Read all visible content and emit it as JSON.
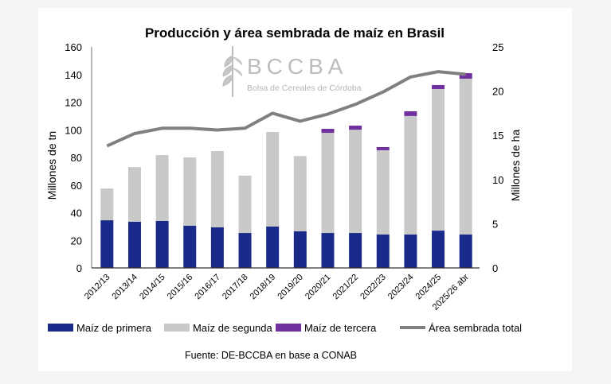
{
  "chart_data": {
    "type": "bar",
    "title": "Producción y área sembrada de maíz en Brasil",
    "ylabel": "Millones de tn",
    "y2label": "Millones de ha",
    "ylim": [
      0,
      160
    ],
    "yticks": [
      0,
      20,
      40,
      60,
      80,
      100,
      120,
      140,
      160
    ],
    "y2lim": [
      0,
      25
    ],
    "y2ticks": [
      0,
      5,
      10,
      15,
      20,
      25
    ],
    "stacked": true,
    "grid": false,
    "legend": "bottom",
    "categories": [
      "2012/13",
      "2013/14",
      "2014/15",
      "2015/16",
      "2016/17",
      "2017/18",
      "2018/19",
      "2019/20",
      "2020/21",
      "2021/22",
      "2022/23",
      "2023/24",
      "2024/25",
      "2025/26 abr"
    ],
    "series": [
      {
        "name": "Maíz de primera",
        "type": "bar",
        "color": "#1a2a8a",
        "values": [
          34.5,
          33.4,
          34,
          30.5,
          29.4,
          25.3,
          30,
          26.5,
          25.3,
          25.3,
          24.2,
          24.2,
          27,
          24.2
        ]
      },
      {
        "name": "Maíz de segunda",
        "type": "bar",
        "color": "#c9c9c9",
        "values": [
          23,
          39.6,
          47.7,
          49.5,
          55.2,
          41.5,
          68.4,
          54.5,
          72.5,
          74.7,
          61,
          85.8,
          102.5,
          112.8
        ]
      },
      {
        "name": "Maíz de tercera",
        "type": "bar",
        "color": "#7030a0",
        "values": [
          0,
          0,
          0,
          0,
          0,
          0,
          0,
          0,
          2.9,
          3,
          2.3,
          3.4,
          2.9,
          4
        ]
      },
      {
        "name": "Área sembrada total",
        "type": "line",
        "axis": "right",
        "color": "#808080",
        "values": [
          13.8,
          15.2,
          15.8,
          15.8,
          15.6,
          15.8,
          17.5,
          16.6,
          17.4,
          18.5,
          19.9,
          21.6,
          22.2,
          21.9
        ]
      }
    ],
    "source": "Fuente: DE-BCCBA en base a CONAB"
  },
  "logo": {
    "name": "BCCBA",
    "subtitle": "Bolsa de Cereales de Córdoba"
  }
}
